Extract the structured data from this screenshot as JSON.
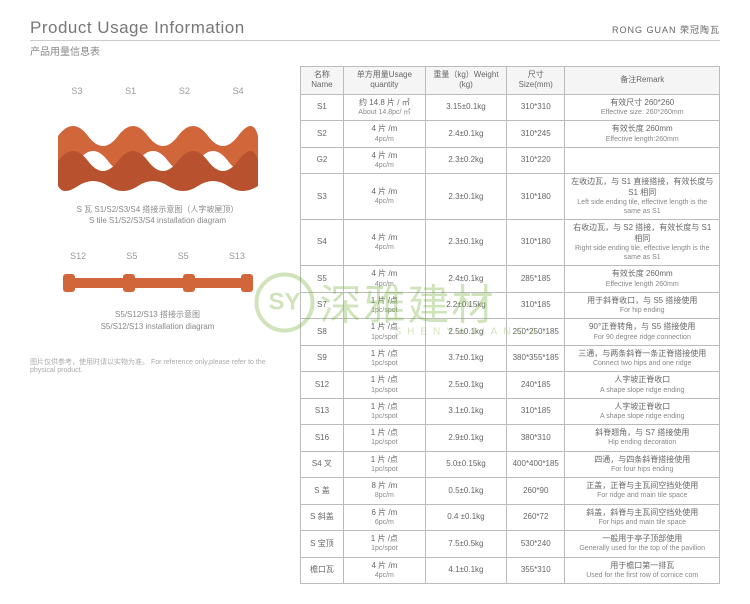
{
  "header": {
    "title_en": "Product Usage Information",
    "title_cn": "产品用量信息表",
    "brand": "RONG GUAN 荣冠陶瓦"
  },
  "diagram1": {
    "labels": [
      "S3",
      "S1",
      "S2",
      "S4"
    ],
    "caption_cn": "S 瓦 S1/S2/S3/S4 搭接示意图（人字坡屋顶）",
    "caption_en": "S tile S1/S2/S3/S4 installation diagram"
  },
  "diagram2": {
    "labels": [
      "S12",
      "S5",
      "S5",
      "S13"
    ],
    "caption_cn": "S5/S12/S13 搭接示意图",
    "caption_en": "S5/S12/S13 installation diagram"
  },
  "footer": {
    "cn": "图片仅供参考，使用时请以实物为准。",
    "en": "For reference only,please refer to the physical product."
  },
  "table": {
    "headers": [
      {
        "cn": "名称",
        "en": "Name"
      },
      {
        "cn": "单方用量",
        "en": "Usage quantity"
      },
      {
        "cn": "重量（kg）",
        "en": "Weight (kg)"
      },
      {
        "cn": "尺寸",
        "en": "Size(mm)"
      },
      {
        "cn": "备注",
        "en": "Remark"
      }
    ],
    "rows": [
      {
        "name": "S1",
        "qty_cn": "约 14.8 片 / ㎡",
        "qty_en": "About 14.8pc/ ㎡",
        "wt": "3.15±0.1kg",
        "size": "310*310",
        "rem_cn": "有效尺寸 260*260",
        "rem_en": "Effective size: 260*260mm"
      },
      {
        "name": "S2",
        "qty_cn": "4 片 /m",
        "qty_en": "4pc/m",
        "wt": "2.4±0.1kg",
        "size": "310*245",
        "rem_cn": "有效长度 260mm",
        "rem_en": "Effective length:260mm"
      },
      {
        "name": "G2",
        "qty_cn": "4 片 /m",
        "qty_en": "4pc/m",
        "wt": "2.3±0.2kg",
        "size": "310*220",
        "rem_cn": "",
        "rem_en": ""
      },
      {
        "name": "S3",
        "qty_cn": "4 片 /m",
        "qty_en": "4pc/m",
        "wt": "2.3±0.1kg",
        "size": "310*180",
        "rem_cn": "左收边瓦，与 S1 直接搭接，有效长度与 S1 相同",
        "rem_en": "Left side ending tile, effective length is the same as S1"
      },
      {
        "name": "S4",
        "qty_cn": "4 片 /m",
        "qty_en": "4pc/m",
        "wt": "2.3±0.1kg",
        "size": "310*180",
        "rem_cn": "右收边瓦，与 S2 搭接，有效长度与 S1 相同",
        "rem_en": "Right side ending tile, effective length is the same as S1"
      },
      {
        "name": "S5",
        "qty_cn": "4 片 /m",
        "qty_en": "4pc/m",
        "wt": "2.4±0.1kg",
        "size": "285*185",
        "rem_cn": "有效长度 260mm",
        "rem_en": "Effective length 260mm"
      },
      {
        "name": "S7",
        "qty_cn": "1 片 /点",
        "qty_en": "1pc/spot",
        "wt": "2.2±0.15kg",
        "size": "310*185",
        "rem_cn": "用于斜脊收口，与 S5 搭接使用",
        "rem_en": "For hip ending"
      },
      {
        "name": "S8",
        "qty_cn": "1 片 /点",
        "qty_en": "1pc/spot",
        "wt": "2.5±0.1kg",
        "size": "250*250*185",
        "rem_cn": "90°正脊转角，与 S5 搭接使用",
        "rem_en": "For 90 degree ridge connection"
      },
      {
        "name": "S9",
        "qty_cn": "1 片 /点",
        "qty_en": "1pc/spot",
        "wt": "3.7±0.1kg",
        "size": "380*355*185",
        "rem_cn": "三通，与两条斜脊一条正脊搭接使用",
        "rem_en": "Connect two hips and one ridge"
      },
      {
        "name": "S12",
        "qty_cn": "1 片 /点",
        "qty_en": "1pc/spot",
        "wt": "2.5±0.1kg",
        "size": "240*185",
        "rem_cn": "人字坡正脊收口",
        "rem_en": "A shape slope ridge ending"
      },
      {
        "name": "S13",
        "qty_cn": "1 片 /点",
        "qty_en": "1pc/spot",
        "wt": "3.1±0.1kg",
        "size": "310*185",
        "rem_cn": "人字坡正脊收口",
        "rem_en": "A shape slope ridge ending"
      },
      {
        "name": "S16",
        "qty_cn": "1 片 /点",
        "qty_en": "1pc/spot",
        "wt": "2.9±0.1kg",
        "size": "380*310",
        "rem_cn": "斜脊翘角，与 S7 搭接使用",
        "rem_en": "Hip ending decoration"
      },
      {
        "name": "S4 叉",
        "qty_cn": "1 片 /点",
        "qty_en": "1pc/spot",
        "wt": "5.0±0.15kg",
        "size": "400*400*185",
        "rem_cn": "四通，与四条斜脊搭接使用",
        "rem_en": "For four hips ending"
      },
      {
        "name": "S 盖",
        "qty_cn": "8 片 /m",
        "qty_en": "8pc/m",
        "wt": "0.5±0.1kg",
        "size": "260*90",
        "rem_cn": "正盖，正脊与主瓦间空挡处使用",
        "rem_en": "For ridge and main tile space"
      },
      {
        "name": "S 斜盖",
        "qty_cn": "6 片 /m",
        "qty_en": "6pc/m",
        "wt": "0.4 ±0.1kg",
        "size": "260*72",
        "rem_cn": "斜盖，斜脊与主瓦间空挡处使用",
        "rem_en": "For hips and main tile space"
      },
      {
        "name": "S 宝顶",
        "qty_cn": "1 片 /点",
        "qty_en": "1pc/spot",
        "wt": "7.5±0.5kg",
        "size": "530*240",
        "rem_cn": "一般用于亭子顶部使用",
        "rem_en": "Generally used for the top of the pavilion"
      },
      {
        "name": "檐口瓦",
        "qty_cn": "4 片 /m",
        "qty_en": "4pc/m",
        "wt": "4.1±0.1kg",
        "size": "355*310",
        "rem_cn": "用于檐口第一排瓦",
        "rem_en": "Used for the first row of cornice com"
      }
    ]
  },
  "watermark": {
    "logo": "SY",
    "text": "深雅建材",
    "sub": "SHENYAJIANCAI"
  },
  "colors": {
    "tile": "#d2663b",
    "tile_dark": "#b8522e",
    "wm": "#7cb342"
  }
}
